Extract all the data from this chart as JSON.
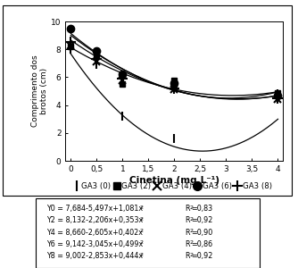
{
  "ylabel": "Comprimento dos\nbrotos (cm)",
  "xlabel": "Cinetina (mg.L⁻¹)",
  "xlim": [
    -0.1,
    4.1
  ],
  "ylim": [
    0,
    10
  ],
  "xticks": [
    0,
    0.5,
    1,
    1.5,
    2,
    2.5,
    3,
    3.5,
    4
  ],
  "xtick_labels": [
    "0",
    "0,5",
    "1",
    "1,5",
    "2",
    "2,5",
    "3",
    "3,5",
    "4"
  ],
  "yticks": [
    0,
    2,
    4,
    6,
    8,
    10
  ],
  "equations": [
    {
      "label": "Y0",
      "a": 7.684,
      "b": -5.497,
      "c": 1.081
    },
    {
      "label": "Y2",
      "a": 8.132,
      "b": -2.206,
      "c": 0.353
    },
    {
      "label": "Y4",
      "a": 8.66,
      "b": -2.605,
      "c": 0.402
    },
    {
      "label": "Y6",
      "a": 9.142,
      "b": -3.045,
      "c": 0.499
    },
    {
      "label": "Y8",
      "a": 9.002,
      "b": -2.853,
      "c": 0.444
    }
  ],
  "data_points": [
    {
      "key": "GA3_0",
      "x": [
        0,
        0.5,
        1.0,
        2.0,
        4.0
      ],
      "y": [
        8.0,
        6.9,
        3.2,
        1.6,
        4.8
      ],
      "marker": "|"
    },
    {
      "key": "GA3_2",
      "x": [
        0,
        0.5,
        1.0,
        2.0,
        4.0
      ],
      "y": [
        8.2,
        7.5,
        5.5,
        5.8,
        4.9
      ],
      "marker": "s"
    },
    {
      "key": "GA3_4",
      "x": [
        0,
        0.5,
        1.0,
        2.0,
        4.0
      ],
      "y": [
        8.3,
        7.1,
        5.8,
        5.1,
        4.4
      ],
      "marker": "x"
    },
    {
      "key": "GA3_6",
      "x": [
        0,
        0.5,
        1.0,
        2.0,
        4.0
      ],
      "y": [
        9.5,
        7.9,
        6.2,
        5.6,
        4.7
      ],
      "marker": "o"
    },
    {
      "key": "GA3_8",
      "x": [
        0,
        0.5,
        1.0,
        2.0,
        4.0
      ],
      "y": [
        8.5,
        7.3,
        5.9,
        5.2,
        4.5
      ],
      "marker": "+"
    }
  ],
  "legend_labels": [
    "GA3 (0)",
    "GA3 (2)",
    "GA3 (4)",
    "GA3 (6)",
    "GA3 (8)"
  ],
  "legend_markers": [
    "|",
    "s",
    "x",
    "o",
    "+"
  ],
  "eq_lines_left": [
    "Y0 = 7,684-5,497x+1,081x",
    "Y2 = 8,132-2,206x+0,353x",
    "Y4 = 8,660-2,605x+0,402x",
    "Y6 = 9,142-3,045x+0,499x",
    "Y8 = 9,002-2,853x+0,444x"
  ],
  "eq_lines_right": [
    "R =0,83",
    "R =0,92",
    "R =0,90",
    "R =0,86",
    "R =0,92"
  ]
}
